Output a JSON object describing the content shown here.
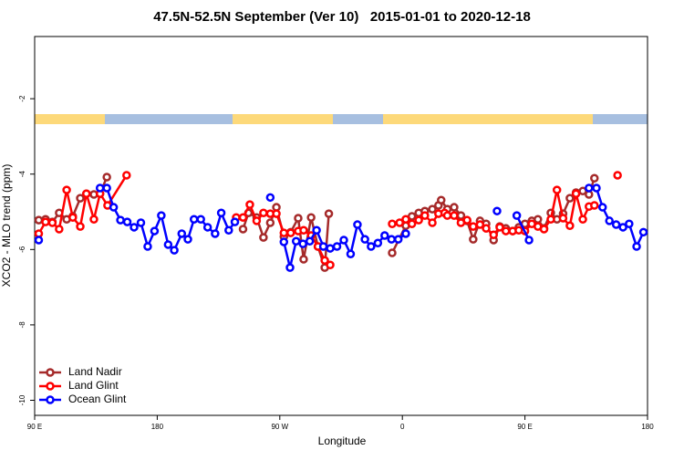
{
  "chart_data": {
    "type": "line",
    "title": "47.5N-52.5N September (Ver 10)   2015-01-01 to 2020-12-18",
    "x_label": "Longitude",
    "y_label": "XCO2 - MLO trend (ppm)",
    "xlim": [
      90,
      540
    ],
    "ylim": [
      -10.4,
      -0.35
    ],
    "xticks": [
      {
        "value": 90,
        "label": "90 E"
      },
      {
        "value": 180,
        "label": "180"
      },
      {
        "value": 270,
        "label": "90 W"
      },
      {
        "value": 360,
        "label": "0"
      },
      {
        "value": 450,
        "label": "90 E"
      },
      {
        "value": 540,
        "label": "180"
      }
    ],
    "yticks": [
      -2,
      -4,
      -6,
      -8,
      -10
    ],
    "legend": "bottom-left",
    "series": [
      {
        "name": "Land Nadir",
        "color": "#a52a2a",
        "x": [
          93,
          98,
          103,
          108,
          113.5,
          118,
          123.5,
          128,
          133.5,
          138,
          143,
          null,
          243,
          247,
          253,
          258,
          263,
          267.5,
          273,
          278,
          283.5,
          287.5,
          293,
          298,
          303,
          306,
          null,
          352.5,
          362.5,
          367,
          372,
          376.5,
          382,
          386.5,
          388.5,
          393,
          398,
          403,
          407.5,
          412,
          417,
          421.5,
          427,
          431.5,
          436,
          441,
          445.5,
          450,
          455,
          459.5,
          464,
          469,
          473.5,
          478,
          483,
          487.5,
          492.5,
          497,
          501
        ],
        "values": [
          -5.22,
          -5.2,
          -5.27,
          -5.03,
          -5.2,
          -5.12,
          -4.64,
          -4.52,
          -4.54,
          -4.52,
          -4.08,
          null,
          -5.46,
          -5.03,
          -5.15,
          -5.68,
          -5.29,
          -4.88,
          -5.66,
          -5.54,
          -5.17,
          -6.26,
          -5.15,
          -5.92,
          -6.48,
          -5.05,
          null,
          -6.09,
          -5.37,
          -5.12,
          -5.03,
          -4.98,
          -4.93,
          -4.83,
          -4.69,
          -4.93,
          -4.88,
          -5.1,
          -5.24,
          -5.73,
          -5.24,
          -5.32,
          -5.75,
          -5.39,
          -5.44,
          -5.51,
          -5.41,
          -5.32,
          -5.24,
          -5.2,
          -5.44,
          -5.03,
          -5.2,
          -5.05,
          -4.64,
          -4.49,
          -4.45,
          -4.54,
          -4.11
        ]
      },
      {
        "name": "Land Glint",
        "color": "#ff0000",
        "x": [
          93,
          98,
          103,
          108,
          113.5,
          118,
          123.5,
          128,
          133.5,
          138,
          143.5,
          157.5,
          null,
          238,
          243,
          248,
          253,
          258,
          263,
          267.5,
          273,
          278,
          283.5,
          287.5,
          293,
          298,
          303,
          307,
          null,
          352.5,
          358,
          362.5,
          367,
          372,
          376.5,
          382,
          386.5,
          391,
          393,
          398,
          403,
          407.5,
          412,
          417,
          421.5,
          427,
          431.5,
          436,
          441,
          445.5,
          450,
          455,
          459.5,
          464,
          469,
          473.5,
          478,
          483,
          487.5,
          492.5,
          497,
          501,
          null,
          518
        ],
        "values": [
          -5.58,
          -5.27,
          -5.29,
          -5.46,
          -4.42,
          -5.15,
          -5.39,
          -4.52,
          -5.2,
          -4.52,
          -4.83,
          -4.03,
          null,
          -5.15,
          -5.15,
          -4.81,
          -5.24,
          -5.03,
          -5.05,
          -5.05,
          -5.56,
          -5.56,
          -5.51,
          -5.49,
          -5.63,
          -5.92,
          -6.29,
          -6.41,
          null,
          -5.32,
          -5.29,
          -5.2,
          -5.32,
          -5.22,
          -5.1,
          -5.29,
          -5.05,
          -5.03,
          -5.1,
          -5.1,
          -5.29,
          -5.22,
          -5.39,
          -5.34,
          -5.44,
          -5.61,
          -5.41,
          -5.51,
          -5.51,
          -5.49,
          -5.51,
          -5.32,
          -5.39,
          -5.46,
          -5.2,
          -4.42,
          -5.17,
          -5.37,
          -4.52,
          -5.2,
          -4.86,
          -4.83,
          null,
          -4.03
        ]
      },
      {
        "name": "Ocean Glint",
        "color": "#0000ff",
        "x": [
          93,
          null,
          138,
          143,
          148,
          153,
          158,
          163,
          168,
          173,
          178,
          183,
          188,
          192.5,
          198,
          202.5,
          207,
          212,
          217,
          222.5,
          227,
          232.5,
          237,
          null,
          263,
          null,
          273,
          277.5,
          282,
          287,
          292,
          297,
          302,
          307,
          312,
          317,
          322,
          327,
          332.5,
          337,
          342,
          347,
          352,
          357,
          362.5,
          null,
          429.5,
          null,
          444,
          453,
          null,
          497,
          502.5,
          507,
          512,
          517,
          522,
          526.5,
          532,
          537
        ],
        "values": [
          -5.75,
          null,
          -4.37,
          -4.37,
          -4.88,
          -5.22,
          -5.27,
          -5.41,
          -5.29,
          -5.92,
          -5.51,
          -5.1,
          -5.87,
          -6.02,
          -5.58,
          -5.73,
          -5.2,
          -5.2,
          -5.41,
          -5.58,
          -5.03,
          -5.49,
          -5.27,
          null,
          -4.62,
          null,
          -5.8,
          -6.48,
          -5.78,
          -5.85,
          -5.78,
          -5.49,
          -5.92,
          -5.97,
          -5.92,
          -5.75,
          -6.12,
          -5.34,
          -5.73,
          -5.92,
          -5.83,
          -5.63,
          -5.73,
          -5.73,
          -5.58,
          null,
          -4.98,
          null,
          -5.1,
          -5.75,
          null,
          -4.37,
          -4.37,
          -4.88,
          -5.24,
          -5.34,
          -5.41,
          -5.32,
          -5.92,
          -5.54
        ]
      }
    ]
  }
}
